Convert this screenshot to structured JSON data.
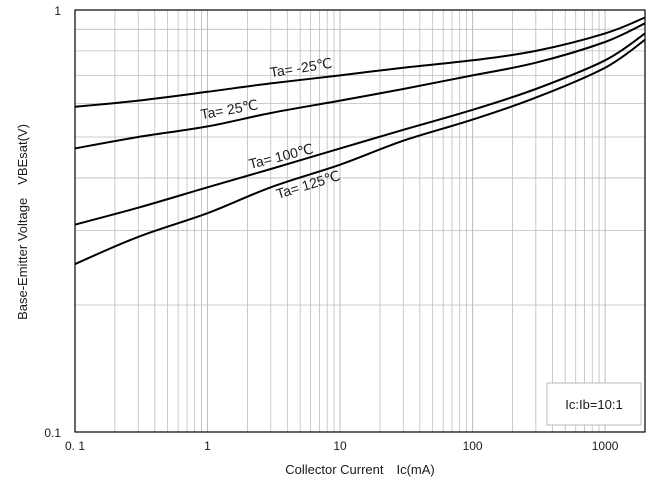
{
  "chart_data": {
    "type": "line",
    "x_scale": "log",
    "y_scale": "log",
    "xlim": [
      0.1,
      2000
    ],
    "ylim": [
      0.1,
      1
    ],
    "xlabel": "Collector Current　Ic(mA)",
    "ylabel": "Base-Emitter Voltage　VBEsat(V)",
    "x_ticks": [
      {
        "value": 0.1,
        "label": "0. 1"
      },
      {
        "value": 1,
        "label": "1"
      },
      {
        "value": 10,
        "label": "10"
      },
      {
        "value": 100,
        "label": "100"
      },
      {
        "value": 1000,
        "label": "1000"
      }
    ],
    "y_ticks": [
      {
        "value": 1,
        "label": "1"
      },
      {
        "value": 0.1,
        "label": "0.1"
      }
    ],
    "grid": true,
    "legend": "none",
    "annotation": "Ic:Ib=10:1",
    "series": [
      {
        "name": "Ta= -25℃",
        "x": [
          0.1,
          0.3,
          1,
          3,
          10,
          30,
          100,
          300,
          1000,
          2000
        ],
        "y": [
          0.59,
          0.61,
          0.64,
          0.67,
          0.7,
          0.73,
          0.76,
          0.8,
          0.88,
          0.96
        ]
      },
      {
        "name": "Ta= 25℃",
        "x": [
          0.1,
          0.3,
          1,
          3,
          10,
          30,
          100,
          300,
          1000,
          2000
        ],
        "y": [
          0.47,
          0.5,
          0.53,
          0.57,
          0.61,
          0.65,
          0.7,
          0.75,
          0.84,
          0.93
        ]
      },
      {
        "name": "Ta= 100℃",
        "x": [
          0.1,
          0.3,
          1,
          3,
          10,
          30,
          100,
          300,
          1000,
          2000
        ],
        "y": [
          0.31,
          0.34,
          0.38,
          0.42,
          0.47,
          0.52,
          0.58,
          0.65,
          0.76,
          0.88
        ]
      },
      {
        "name": "Ta= 125℃",
        "x": [
          0.1,
          0.3,
          1,
          3,
          10,
          30,
          100,
          300,
          1000,
          2000
        ],
        "y": [
          0.25,
          0.29,
          0.33,
          0.38,
          0.43,
          0.49,
          0.55,
          0.62,
          0.73,
          0.85
        ]
      }
    ]
  }
}
